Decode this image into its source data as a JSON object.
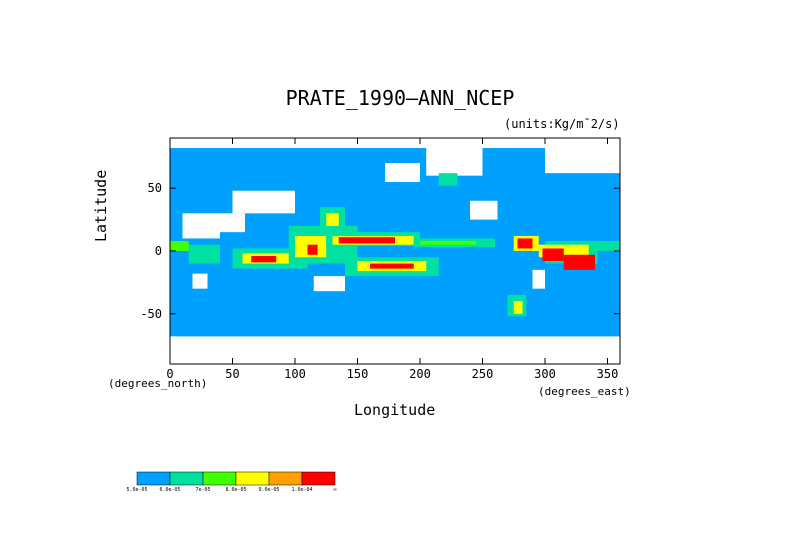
{
  "chart_data": {
    "type": "heatmap",
    "title": "PRATE_1990—ANN_NCEP",
    "units": "(units:Kg/m¯2/s)",
    "xlabel": "Longitude",
    "ylabel": "Latitude",
    "x_units_label": "(degrees_east)",
    "y_units_label": "(degrees_north)",
    "xlim": [
      0,
      360
    ],
    "ylim": [
      -90,
      90
    ],
    "x_ticks": [
      "0",
      "50",
      "100",
      "150",
      "200",
      "250",
      "300",
      "350"
    ],
    "x_tick_values": [
      0,
      50,
      100,
      150,
      200,
      250,
      300,
      350
    ],
    "y_ticks": [
      "50",
      "0",
      "-50"
    ],
    "y_tick_values": [
      50,
      0,
      -50
    ],
    "color_scale": {
      "bins": [
        {
          "color": "#00a0ff",
          "label": "5.0e-05"
        },
        {
          "color": "#00e0a0",
          "label": "6.0e-05"
        },
        {
          "color": "#40ff00",
          "label": "7e-05"
        },
        {
          "color": "#ffff00",
          "label": "8.0e-05"
        },
        {
          "color": "#ffa000",
          "label": "9.0e-05"
        },
        {
          "color": "#ff0000",
          "label": "1.0e-04"
        }
      ],
      "end_label": "∞"
    },
    "regions": [
      {
        "lon": [
          0,
          360
        ],
        "lat": [
          -70,
          82
        ],
        "level": 0
      },
      {
        "lon": [
          205,
          250
        ],
        "lat": [
          60,
          88
        ],
        "level": -1
      },
      {
        "lon": [
          300,
          360
        ],
        "lat": [
          62,
          85
        ],
        "level": -1
      },
      {
        "lon": [
          0,
          360
        ],
        "lat": [
          -90,
          -68
        ],
        "level": -1
      },
      {
        "lon": [
          10,
          40
        ],
        "lat": [
          10,
          30
        ],
        "level": -1
      },
      {
        "lon": [
          40,
          60
        ],
        "lat": [
          15,
          30
        ],
        "level": -1
      },
      {
        "lon": [
          50,
          100
        ],
        "lat": [
          30,
          48
        ],
        "level": -1
      },
      {
        "lon": [
          240,
          262
        ],
        "lat": [
          25,
          40
        ],
        "level": -1
      },
      {
        "lon": [
          115,
          140
        ],
        "lat": [
          -32,
          -20
        ],
        "level": -1
      },
      {
        "lon": [
          290,
          300
        ],
        "lat": [
          -30,
          -15
        ],
        "level": -1
      },
      {
        "lon": [
          18,
          30
        ],
        "lat": [
          -30,
          -18
        ],
        "level": -1
      },
      {
        "lon": [
          172,
          200
        ],
        "lat": [
          55,
          70
        ],
        "level": -1
      },
      {
        "lon": [
          300,
          342
        ],
        "lat": [
          -10,
          8
        ],
        "level": 1
      },
      {
        "lon": [
          295,
          335
        ],
        "lat": [
          -5,
          5
        ],
        "level": 3
      },
      {
        "lon": [
          298,
          315
        ],
        "lat": [
          -8,
          2
        ],
        "level": 5
      },
      {
        "lon": [
          275,
          295
        ],
        "lat": [
          0,
          12
        ],
        "level": 3
      },
      {
        "lon": [
          278,
          290
        ],
        "lat": [
          2,
          10
        ],
        "level": 5
      },
      {
        "lon": [
          315,
          340
        ],
        "lat": [
          -15,
          -3
        ],
        "level": 5
      },
      {
        "lon": [
          270,
          285
        ],
        "lat": [
          -52,
          -35
        ],
        "level": 1
      },
      {
        "lon": [
          275,
          282
        ],
        "lat": [
          -50,
          -40
        ],
        "level": 3
      },
      {
        "lon": [
          50,
          110
        ],
        "lat": [
          -14,
          2
        ],
        "level": 1
      },
      {
        "lon": [
          58,
          100
        ],
        "lat": [
          -10,
          -2
        ],
        "level": 3
      },
      {
        "lon": [
          65,
          85
        ],
        "lat": [
          -9,
          -4
        ],
        "level": 5
      },
      {
        "lon": [
          95,
          150
        ],
        "lat": [
          -10,
          20
        ],
        "level": 1
      },
      {
        "lon": [
          100,
          125
        ],
        "lat": [
          -5,
          12
        ],
        "level": 3
      },
      {
        "lon": [
          110,
          118
        ],
        "lat": [
          -3,
          5
        ],
        "level": 5
      },
      {
        "lon": [
          120,
          140
        ],
        "lat": [
          18,
          35
        ],
        "level": 1
      },
      {
        "lon": [
          125,
          135
        ],
        "lat": [
          20,
          30
        ],
        "level": 3
      },
      {
        "lon": [
          125,
          200
        ],
        "lat": [
          4,
          15
        ],
        "level": 1
      },
      {
        "lon": [
          130,
          195
        ],
        "lat": [
          5,
          12
        ],
        "level": 3
      },
      {
        "lon": [
          135,
          180
        ],
        "lat": [
          6,
          11
        ],
        "level": 5
      },
      {
        "lon": [
          195,
          260
        ],
        "lat": [
          3,
          10
        ],
        "level": 1
      },
      {
        "lon": [
          200,
          245
        ],
        "lat": [
          5,
          8
        ],
        "level": 2
      },
      {
        "lon": [
          140,
          215
        ],
        "lat": [
          -20,
          -5
        ],
        "level": 1
      },
      {
        "lon": [
          150,
          205
        ],
        "lat": [
          -16,
          -8
        ],
        "level": 3
      },
      {
        "lon": [
          160,
          195
        ],
        "lat": [
          -14,
          -10
        ],
        "level": 5
      },
      {
        "lon": [
          15,
          40
        ],
        "lat": [
          -10,
          5
        ],
        "level": 1
      },
      {
        "lon": [
          0,
          15
        ],
        "lat": [
          0,
          8
        ],
        "level": 2
      },
      {
        "lon": [
          215,
          230
        ],
        "lat": [
          52,
          62
        ],
        "level": 1
      },
      {
        "lon": [
          340,
          360
        ],
        "lat": [
          0,
          8
        ],
        "level": 1
      }
    ]
  }
}
